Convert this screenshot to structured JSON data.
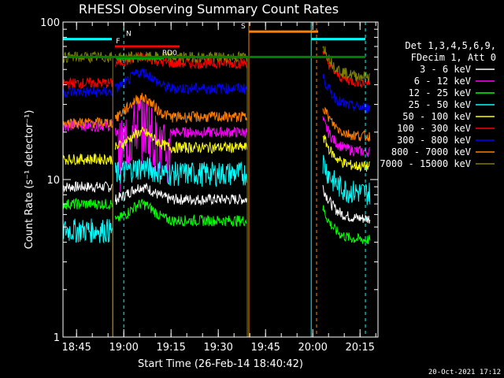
{
  "chart_data": {
    "type": "line",
    "title": "RHESSI Observing Summary Count Rates",
    "xlabel": "Start Time (26-Feb-14 18:40:42)",
    "ylabel": "Count Rate (s⁻¹ detector⁻¹)",
    "yscale": "log",
    "ylim": [
      1,
      100
    ],
    "xlim_minutes": [
      0,
      100
    ],
    "x_tick_labels": [
      "18:45",
      "19:00",
      "19:15",
      "19:30",
      "19:45",
      "20:00",
      "20:15"
    ],
    "x_tick_minutes": [
      4.3,
      19.3,
      34.3,
      49.3,
      64.3,
      79.3,
      94.3
    ],
    "y_tick_labels": [
      "1",
      "10",
      "100"
    ],
    "y_tick_values": [
      1,
      10,
      100
    ],
    "legend_header": [
      "Det 1,3,4,5,6,9,",
      "FDecim 1, Att 0"
    ],
    "legend_position": "right",
    "series": [
      {
        "name": "3 - 6 keV",
        "color": "#ffffff",
        "base": [
          9,
          7.5
        ],
        "peak": 9
      },
      {
        "name": "6 - 12 keV",
        "color": "#ff00ff",
        "base": [
          22,
          20
        ],
        "peak": 28
      },
      {
        "name": "12 - 25 keV",
        "color": "#00ff00",
        "base": [
          7,
          5.5
        ],
        "peak": 7
      },
      {
        "name": "25 - 50 keV",
        "color": "#00ffff",
        "base": [
          4.8,
          11
        ],
        "peak": 12
      },
      {
        "name": "50 - 100 keV",
        "color": "#ffff00",
        "base": [
          13.5,
          16
        ],
        "peak": 20
      },
      {
        "name": "100 - 300 keV",
        "color": "#ff0000",
        "base": [
          41,
          55
        ],
        "peak": 60
      },
      {
        "name": "300 - 800 keV",
        "color": "#0000ff",
        "base": [
          36,
          38
        ],
        "peak": 48
      },
      {
        "name": "800 - 7000 keV",
        "color": "#ff8000",
        "base": [
          23,
          25
        ],
        "peak": 33
      },
      {
        "name": "7000 - 15000 keV",
        "color": "#808000",
        "base": [
          60,
          60
        ],
        "peak": 60
      }
    ],
    "flags": [
      {
        "label": "N",
        "color": "#00ffff",
        "value": 78
      },
      {
        "label": "S",
        "color": "#ff8000",
        "value": 87
      },
      {
        "label": "F",
        "color": "#ff0000",
        "value": 70
      },
      {
        "label": "RD0",
        "color": "#00aa00",
        "value": 59
      }
    ],
    "grid": false
  },
  "footer_timestamp": "20-Oct-2021 17:12"
}
